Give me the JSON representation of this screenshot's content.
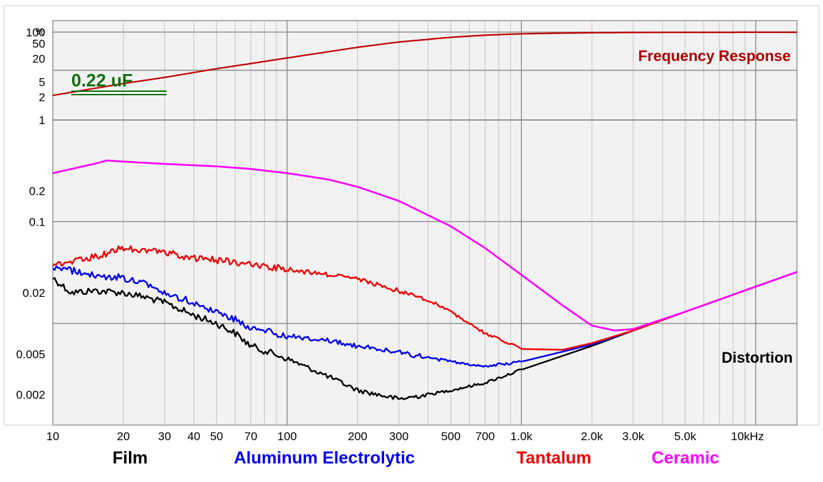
{
  "chart_data": {
    "type": "line",
    "title": "",
    "xlabel": "",
    "ylabel": "",
    "x_unit": "Hz",
    "y_unit": "%",
    "x_scale": "log",
    "y_scale": "log",
    "xlim": [
      10,
      15000
    ],
    "capacitance_label": "0.22 uF",
    "frequency_panel": {
      "label": "Frequency Response",
      "ylim": [
        0.5,
        200
      ],
      "y_ticks": [
        100,
        50,
        20,
        5,
        2
      ],
      "color": "#c00000",
      "series": [
        {
          "name": "Frequency Response",
          "x": [
            10,
            20,
            30,
            50,
            70,
            100,
            200,
            300,
            500,
            700,
            1000,
            1500,
            2000,
            3000,
            5000,
            10000,
            15000
          ],
          "y": [
            2.2,
            4.5,
            6.5,
            11,
            15,
            21,
            40,
            55,
            73,
            83,
            90,
            94,
            96,
            97.5,
            98.5,
            99,
            99
          ]
        }
      ]
    },
    "distortion_panel": {
      "label": "Distortion",
      "ylim": [
        0.001,
        1
      ],
      "y_ticks": [
        1,
        0.2,
        0.1,
        0.02,
        0.005,
        0.002
      ],
      "series": [
        {
          "name": "Film",
          "color": "#000000",
          "x": [
            10,
            12,
            15,
            20,
            25,
            30,
            40,
            50,
            60,
            70,
            100,
            150,
            200,
            300,
            400,
            500,
            700,
            1000,
            2000,
            3000,
            5000,
            10000,
            15000
          ],
          "y": [
            0.028,
            0.02,
            0.021,
            0.02,
            0.018,
            0.016,
            0.012,
            0.01,
            0.008,
            0.006,
            0.0045,
            0.003,
            0.0022,
            0.0018,
            0.002,
            0.0022,
            0.0026,
            0.0035,
            0.006,
            0.0085,
            0.013,
            0.023,
            0.032
          ]
        },
        {
          "name": "Aluminum Electrolytic",
          "color": "#0000ee",
          "x": [
            10,
            12,
            15,
            20,
            25,
            30,
            40,
            50,
            60,
            70,
            100,
            150,
            200,
            300,
            400,
            500,
            700,
            1000,
            2000,
            3000,
            5000,
            10000,
            15000
          ],
          "y": [
            0.036,
            0.033,
            0.03,
            0.028,
            0.025,
            0.02,
            0.016,
            0.013,
            0.011,
            0.009,
            0.0075,
            0.0068,
            0.006,
            0.0052,
            0.0046,
            0.0042,
            0.0038,
            0.0042,
            0.0062,
            0.0085,
            0.013,
            0.023,
            0.032
          ]
        },
        {
          "name": "Tantalum",
          "color": "#ee0000",
          "x": [
            10,
            12,
            15,
            20,
            25,
            30,
            40,
            50,
            60,
            70,
            100,
            150,
            200,
            300,
            400,
            500,
            700,
            1000,
            1500,
            2000,
            3000,
            5000,
            10000,
            15000
          ],
          "y": [
            0.038,
            0.04,
            0.045,
            0.055,
            0.052,
            0.05,
            0.044,
            0.042,
            0.04,
            0.038,
            0.034,
            0.03,
            0.027,
            0.021,
            0.017,
            0.013,
            0.008,
            0.0056,
            0.0055,
            0.0064,
            0.0085,
            0.013,
            0.023,
            0.032
          ]
        },
        {
          "name": "Ceramic",
          "color": "#ff00ff",
          "x": [
            10,
            12,
            15,
            17,
            20,
            30,
            50,
            70,
            100,
            150,
            200,
            300,
            500,
            700,
            1000,
            1500,
            2000,
            2500,
            3000,
            5000,
            10000,
            15000
          ],
          "y": [
            0.3,
            0.33,
            0.37,
            0.4,
            0.39,
            0.37,
            0.35,
            0.33,
            0.3,
            0.26,
            0.22,
            0.16,
            0.09,
            0.055,
            0.03,
            0.015,
            0.0095,
            0.0085,
            0.0088,
            0.013,
            0.023,
            0.032
          ]
        }
      ]
    },
    "x_ticks": [
      {
        "value": 10,
        "label": "10"
      },
      {
        "value": 20,
        "label": "20"
      },
      {
        "value": 30,
        "label": "30"
      },
      {
        "value": 40,
        "label": "40"
      },
      {
        "value": 50,
        "label": "50"
      },
      {
        "value": 70,
        "label": "70"
      },
      {
        "value": 100,
        "label": "100"
      },
      {
        "value": 200,
        "label": "200"
      },
      {
        "value": 300,
        "label": "300"
      },
      {
        "value": 500,
        "label": "500"
      },
      {
        "value": 700,
        "label": "700"
      },
      {
        "value": 1000,
        "label": "1.0k"
      },
      {
        "value": 2000,
        "label": "2.0k"
      },
      {
        "value": 3000,
        "label": "3.0k"
      },
      {
        "value": 5000,
        "label": "5.0k"
      },
      {
        "value": 10000,
        "label": "10kHz"
      }
    ],
    "grid": true,
    "legend": {
      "position": "bottom",
      "entries": [
        {
          "label": "Film",
          "color": "#000000"
        },
        {
          "label": "Aluminum Electrolytic",
          "color": "#0000ee"
        },
        {
          "label": "Tantalum",
          "color": "#ee0000"
        },
        {
          "label": "Ceramic",
          "color": "#ff00ff"
        }
      ]
    }
  }
}
